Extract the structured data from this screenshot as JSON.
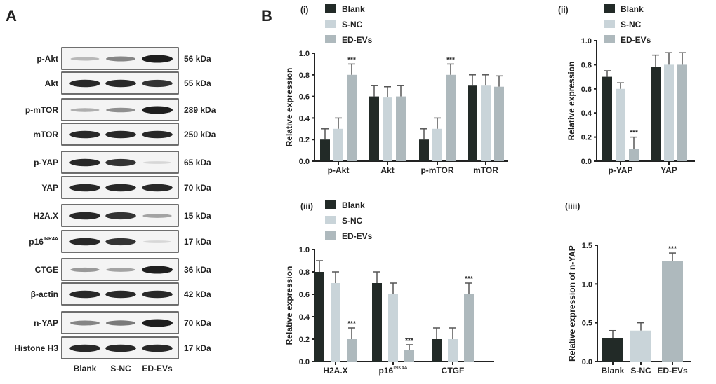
{
  "panel_a": {
    "label": "A",
    "lanes": [
      "Blank",
      "S-NC",
      "ED-EVs"
    ],
    "rows": [
      {
        "protein": "p-Akt",
        "kda": "56 kDa",
        "intensity": [
          0.25,
          0.5,
          1.0
        ]
      },
      {
        "protein": "Akt",
        "kda": "55 kDa",
        "intensity": [
          0.95,
          0.95,
          0.9
        ]
      },
      {
        "protein": "p-mTOR",
        "kda": "289 kDa",
        "intensity": [
          0.3,
          0.45,
          1.0
        ]
      },
      {
        "protein": "mTOR",
        "kda": "250 kDa",
        "intensity": [
          0.95,
          0.95,
          0.95
        ]
      },
      {
        "protein": "p-YAP",
        "kda": "65 kDa",
        "intensity": [
          0.95,
          0.9,
          0.1
        ]
      },
      {
        "protein": "YAP",
        "kda": "70 kDa",
        "intensity": [
          0.95,
          0.95,
          0.95
        ]
      },
      {
        "protein": "H2A.X",
        "kda": "15 kDa",
        "intensity": [
          0.95,
          0.9,
          0.35
        ]
      },
      {
        "protein": "p16",
        "protein_sup": "INK4A",
        "kda": "17 kDa",
        "intensity": [
          0.95,
          0.9,
          0.1
        ]
      },
      {
        "protein": "CTGE",
        "kda": "36 kDa",
        "intensity": [
          0.4,
          0.35,
          1.0
        ]
      },
      {
        "protein": "β-actin",
        "kda": "42 kDa",
        "intensity": [
          0.95,
          0.95,
          0.95
        ]
      },
      {
        "protein": "n-YAP",
        "kda": "70 kDa",
        "intensity": [
          0.5,
          0.55,
          1.0
        ]
      },
      {
        "protein": "Histone H3",
        "kda": "17 kDa",
        "intensity": [
          0.95,
          0.95,
          0.95
        ]
      }
    ]
  },
  "panel_b_label": "B",
  "colors": {
    "Blank": "#222a27",
    "S-NC": "#c9d4d9",
    "ED-EVs": "#aeb9bd",
    "axis": "#222222"
  },
  "chart_data": [
    {
      "id": "i",
      "panel": "(i)",
      "type": "bar",
      "ylabel": "Relative expression",
      "ylim": [
        0,
        1.0
      ],
      "yticks": [
        "0.0",
        "0.2",
        "0.4",
        "0.6",
        "0.8",
        "1.0"
      ],
      "categories": [
        "p-Akt",
        "Akt",
        "p-mTOR",
        "mTOR"
      ],
      "series": [
        {
          "name": "Blank",
          "values": [
            0.2,
            0.6,
            0.2,
            0.7
          ],
          "errors": [
            0.1,
            0.1,
            0.1,
            0.1
          ]
        },
        {
          "name": "S-NC",
          "values": [
            0.3,
            0.59,
            0.3,
            0.7
          ],
          "errors": [
            0.1,
            0.1,
            0.1,
            0.1
          ]
        },
        {
          "name": "ED-EVs",
          "values": [
            0.8,
            0.6,
            0.8,
            0.69
          ],
          "errors": [
            0.1,
            0.1,
            0.1,
            0.1
          ]
        }
      ],
      "annotations": [
        {
          "category": "p-Akt",
          "series": "ED-EVs",
          "text": "***"
        },
        {
          "category": "p-mTOR",
          "series": "ED-EVs",
          "text": "***"
        }
      ]
    },
    {
      "id": "ii",
      "panel": "(ii)",
      "type": "bar",
      "ylabel": "Relative expression",
      "ylim": [
        0,
        1.0
      ],
      "yticks": [
        "0.0",
        "0.2",
        "0.4",
        "0.6",
        "0.8",
        "1.0"
      ],
      "categories": [
        "p-YAP",
        "YAP"
      ],
      "series": [
        {
          "name": "Blank",
          "values": [
            0.7,
            0.78
          ],
          "errors": [
            0.05,
            0.1
          ]
        },
        {
          "name": "S-NC",
          "values": [
            0.6,
            0.8
          ],
          "errors": [
            0.05,
            0.1
          ]
        },
        {
          "name": "ED-EVs",
          "values": [
            0.1,
            0.8
          ],
          "errors": [
            0.1,
            0.1
          ]
        }
      ],
      "annotations": [
        {
          "category": "p-YAP",
          "series": "ED-EVs",
          "text": "***"
        }
      ]
    },
    {
      "id": "iii",
      "panel": "(iii)",
      "type": "bar",
      "ylabel": "Relative expression",
      "ylim": [
        0,
        1.0
      ],
      "yticks": [
        "0.0",
        "0.2",
        "0.4",
        "0.6",
        "0.8",
        "1.0"
      ],
      "categories": [
        "H2A.X",
        "p16",
        "CTGF"
      ],
      "category_sup": [
        "",
        "INK4A",
        ""
      ],
      "series": [
        {
          "name": "Blank",
          "values": [
            0.8,
            0.7,
            0.2
          ],
          "errors": [
            0.1,
            0.1,
            0.1
          ]
        },
        {
          "name": "S-NC",
          "values": [
            0.7,
            0.6,
            0.2
          ],
          "errors": [
            0.1,
            0.1,
            0.1
          ]
        },
        {
          "name": "ED-EVs",
          "values": [
            0.2,
            0.1,
            0.6
          ],
          "errors": [
            0.1,
            0.05,
            0.1
          ]
        }
      ],
      "annotations": [
        {
          "category": "H2A.X",
          "series": "ED-EVs",
          "text": "***"
        },
        {
          "category": "p16",
          "series": "ED-EVs",
          "text": "***"
        },
        {
          "category": "CTGF",
          "series": "ED-EVs",
          "text": "***"
        }
      ]
    },
    {
      "id": "iiii",
      "panel": "(iiii)",
      "type": "bar",
      "ylabel": "Relative expression of n-YAP",
      "ylim": [
        0,
        1.5
      ],
      "yticks": [
        "0.0",
        "0.5",
        "1.0",
        "1.5"
      ],
      "categories": [
        "Blank",
        "S-NC",
        "ED-EVs"
      ],
      "values": [
        0.3,
        0.4,
        1.3
      ],
      "errors": [
        0.1,
        0.1,
        0.1
      ],
      "annotations": [
        {
          "category": "ED-EVs",
          "text": "***"
        }
      ]
    }
  ]
}
